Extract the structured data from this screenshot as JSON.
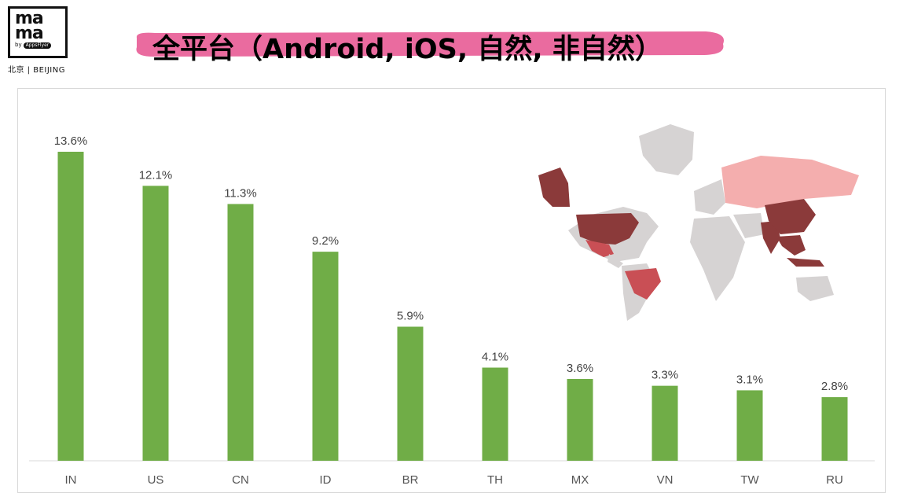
{
  "branding": {
    "logo_text_top": "ma",
    "logo_text_bottom": "ma",
    "logo_by": "by",
    "logo_partner": "AppsFlyer",
    "city": "北京 | BEIJING"
  },
  "title": "全平台（Android, iOS, 自然, 非自然）",
  "colors": {
    "bar": "#70ad47",
    "title_brush": "#ea6b9f",
    "map_gray": "#d6d3d3",
    "map_darkred": "#8b3a3a",
    "map_midred": "#c94f55",
    "map_lightred": "#f4aeae"
  },
  "chart_data": {
    "type": "bar",
    "categories": [
      "IN",
      "US",
      "CN",
      "ID",
      "BR",
      "TH",
      "MX",
      "VN",
      "TW",
      "RU"
    ],
    "values": [
      13.6,
      12.1,
      11.3,
      9.2,
      5.9,
      4.1,
      3.6,
      3.3,
      3.1,
      2.8
    ],
    "data_labels": [
      "13.6%",
      "12.1%",
      "11.3%",
      "9.2%",
      "5.9%",
      "4.1%",
      "3.6%",
      "3.3%",
      "3.1%",
      "2.8%"
    ],
    "ylim": [
      0,
      13.6
    ],
    "grid": false,
    "legend": "none",
    "inset": "world map shading the listed countries"
  }
}
